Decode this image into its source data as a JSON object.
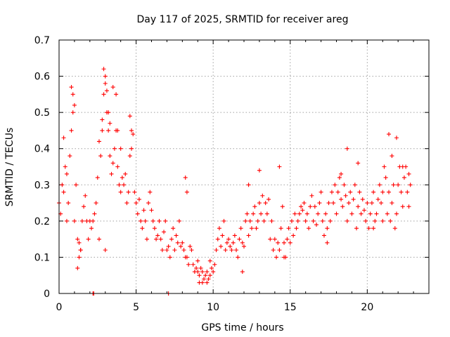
{
  "chart_data": {
    "type": "scatter",
    "title": "Day 117 of 2025, SRMTID for receiver areg",
    "xlabel": "GPS time / hours",
    "ylabel": "SRMTID / TECUs",
    "xlim": [
      0,
      24
    ],
    "ylim": [
      0,
      0.7
    ],
    "x_ticks": [
      0,
      5,
      10,
      15,
      20
    ],
    "x_tick_labels": [
      "0",
      "5",
      "10",
      "15",
      "20"
    ],
    "y_ticks": [
      0,
      0.1,
      0.2,
      0.3,
      0.4,
      0.5,
      0.6,
      0.7
    ],
    "y_tick_labels": [
      "0",
      "0.1",
      "0.2",
      "0.3",
      "0.4",
      "0.5",
      "0.6",
      "0.7"
    ],
    "grid": true,
    "marker": "plus",
    "color": "#ff0000",
    "series": [
      {
        "name": "SRMTID",
        "x": [
          0.0,
          0.1,
          0.2,
          0.3,
          0.4,
          0.5,
          0.6,
          0.7,
          0.8,
          0.9,
          1.0,
          1.1,
          1.2,
          1.3,
          1.4,
          1.5,
          1.6,
          1.7,
          1.8,
          1.9,
          2.0,
          2.1,
          2.2,
          2.3,
          2.4,
          2.5,
          2.6,
          2.7,
          2.8,
          2.9,
          3.0,
          3.1,
          3.2,
          3.3,
          3.4,
          3.5,
          3.6,
          3.7,
          3.8,
          3.9,
          4.0,
          4.1,
          4.2,
          4.3,
          4.4,
          4.5,
          4.6,
          4.7,
          4.8,
          4.9,
          5.0,
          5.1,
          5.2,
          5.3,
          5.4,
          5.5,
          5.6,
          5.7,
          5.8,
          5.9,
          6.0,
          6.1,
          6.2,
          6.3,
          6.4,
          6.5,
          6.6,
          6.7,
          6.8,
          6.9,
          7.0,
          7.1,
          7.2,
          7.3,
          7.4,
          7.5,
          7.6,
          7.7,
          7.8,
          7.9,
          8.0,
          8.1,
          8.2,
          8.3,
          8.4,
          8.5,
          8.6,
          8.7,
          8.8,
          8.9,
          9.0,
          9.1,
          9.2,
          9.3,
          9.4,
          9.5,
          9.6,
          9.7,
          9.8,
          9.9,
          10.0,
          10.1,
          10.2,
          10.3,
          10.4,
          10.5,
          10.6,
          10.7,
          10.8,
          10.9,
          11.0,
          11.1,
          11.2,
          11.3,
          11.4,
          11.5,
          11.6,
          11.7,
          11.8,
          11.9,
          12.0,
          12.1,
          12.2,
          12.3,
          12.4,
          12.5,
          12.6,
          12.7,
          12.8,
          12.9,
          13.0,
          13.1,
          13.2,
          13.3,
          13.4,
          13.5,
          13.6,
          13.7,
          13.8,
          13.9,
          14.0,
          14.1,
          14.2,
          14.3,
          14.4,
          14.5,
          14.6,
          14.7,
          14.8,
          14.9,
          15.0,
          15.1,
          15.2,
          15.3,
          15.4,
          15.5,
          15.6,
          15.7,
          15.8,
          15.9,
          16.0,
          16.1,
          16.2,
          16.3,
          16.4,
          16.5,
          16.6,
          16.7,
          16.8,
          16.9,
          17.0,
          17.1,
          17.2,
          17.3,
          17.4,
          17.5,
          17.6,
          17.7,
          17.8,
          17.9,
          18.0,
          18.1,
          18.2,
          18.3,
          18.4,
          18.5,
          18.6,
          18.7,
          18.8,
          18.9,
          19.0,
          19.1,
          19.2,
          19.3,
          19.4,
          19.5,
          19.6,
          19.7,
          19.8,
          19.9,
          20.0,
          20.1,
          20.2,
          20.3,
          20.4,
          20.5,
          20.6,
          20.7,
          20.8,
          20.9,
          21.0,
          21.1,
          21.2,
          21.3,
          21.4,
          21.5,
          21.6,
          21.7,
          21.8,
          21.9,
          22.0,
          22.1,
          22.2,
          22.3,
          22.4,
          22.5,
          22.6,
          22.7,
          22.8,
          0.3,
          0.5,
          0.8,
          0.9,
          1.0,
          1.2,
          2.8,
          2.9,
          3.0,
          3.1,
          3.2,
          3.3,
          3.5,
          3.7,
          3.8,
          4.0,
          4.6,
          4.7,
          8.2,
          9.1,
          9.3,
          9.6,
          13.0,
          14.3,
          18.7,
          19.4,
          21.4,
          21.6,
          21.9,
          22.3,
          22.7,
          2.2,
          2.25,
          7.1,
          1.3,
          1.4,
          2.6,
          3.0,
          8.3,
          9.0,
          9.8,
          11.9,
          12.3,
          14.6,
          17.4,
          18.3,
          20.4,
          21.0
        ],
        "y": [
          0.25,
          0.22,
          0.3,
          0.28,
          0.35,
          0.2,
          0.25,
          0.38,
          0.45,
          0.5,
          0.52,
          0.3,
          0.15,
          0.1,
          0.12,
          0.2,
          0.24,
          0.27,
          0.2,
          0.15,
          0.2,
          0.18,
          0.2,
          0.22,
          0.25,
          0.32,
          0.42,
          0.38,
          0.48,
          0.55,
          0.6,
          0.5,
          0.45,
          0.38,
          0.33,
          0.36,
          0.4,
          0.45,
          0.35,
          0.3,
          0.28,
          0.32,
          0.3,
          0.33,
          0.25,
          0.28,
          0.38,
          0.4,
          0.44,
          0.28,
          0.25,
          0.22,
          0.26,
          0.2,
          0.18,
          0.23,
          0.2,
          0.15,
          0.25,
          0.28,
          0.23,
          0.2,
          0.18,
          0.15,
          0.16,
          0.2,
          0.15,
          0.12,
          0.17,
          0.2,
          0.12,
          0.13,
          0.1,
          0.15,
          0.18,
          0.12,
          0.16,
          0.14,
          0.2,
          0.13,
          0.14,
          0.12,
          0.1,
          0.1,
          0.08,
          0.13,
          0.12,
          0.08,
          0.06,
          0.07,
          0.06,
          0.05,
          0.07,
          0.06,
          0.04,
          0.05,
          0.06,
          0.04,
          0.05,
          0.07,
          0.06,
          0.08,
          0.12,
          0.15,
          0.18,
          0.13,
          0.16,
          0.2,
          0.12,
          0.14,
          0.15,
          0.13,
          0.12,
          0.14,
          0.16,
          0.12,
          0.1,
          0.15,
          0.18,
          0.14,
          0.13,
          0.2,
          0.22,
          0.16,
          0.2,
          0.18,
          0.22,
          0.24,
          0.18,
          0.2,
          0.25,
          0.22,
          0.27,
          0.2,
          0.25,
          0.22,
          0.26,
          0.15,
          0.2,
          0.12,
          0.15,
          0.1,
          0.14,
          0.12,
          0.18,
          0.24,
          0.14,
          0.1,
          0.15,
          0.18,
          0.14,
          0.2,
          0.16,
          0.22,
          0.18,
          0.2,
          0.22,
          0.24,
          0.23,
          0.25,
          0.2,
          0.22,
          0.18,
          0.24,
          0.27,
          0.2,
          0.24,
          0.19,
          0.22,
          0.25,
          0.28,
          0.2,
          0.16,
          0.22,
          0.18,
          0.25,
          0.2,
          0.28,
          0.25,
          0.3,
          0.22,
          0.28,
          0.32,
          0.26,
          0.24,
          0.3,
          0.27,
          0.2,
          0.25,
          0.28,
          0.22,
          0.26,
          0.3,
          0.18,
          0.24,
          0.28,
          0.22,
          0.26,
          0.23,
          0.2,
          0.25,
          0.18,
          0.22,
          0.25,
          0.28,
          0.2,
          0.22,
          0.26,
          0.3,
          0.25,
          0.28,
          0.35,
          0.32,
          0.22,
          0.28,
          0.2,
          0.25,
          0.3,
          0.18,
          0.22,
          0.3,
          0.35,
          0.28,
          0.24,
          0.32,
          0.35,
          0.28,
          0.24,
          0.3,
          0.43,
          0.33,
          0.57,
          0.55,
          0.2,
          0.07,
          0.45,
          0.62,
          0.58,
          0.56,
          0.5,
          0.47,
          0.57,
          0.55,
          0.45,
          0.4,
          0.49,
          0.45,
          0.32,
          0.03,
          0.03,
          0.03,
          0.34,
          0.35,
          0.4,
          0.36,
          0.44,
          0.38,
          0.43,
          0.35,
          0.33,
          0.0,
          0.0,
          0.0,
          0.14,
          0.12,
          0.15,
          0.12,
          0.28,
          0.09,
          0.09,
          0.06,
          0.3,
          0.1,
          0.14,
          0.33,
          0.18,
          0.2
        ]
      }
    ]
  }
}
